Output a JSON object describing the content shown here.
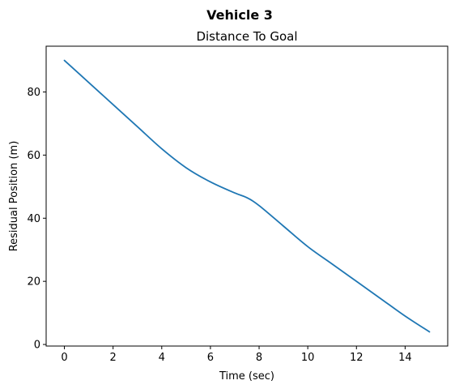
{
  "chart_data": {
    "type": "line",
    "suptitle": "Vehicle 3",
    "title": "Distance To Goal",
    "xlabel": "Time (sec)",
    "ylabel": "Residual Position (m)",
    "xlim": [
      -0.75,
      15.75
    ],
    "ylim": [
      -0.5,
      94.5
    ],
    "xticks": [
      0,
      2,
      4,
      6,
      8,
      10,
      12,
      14
    ],
    "yticks": [
      0,
      20,
      40,
      60,
      80
    ],
    "grid": false,
    "series": [
      {
        "color": "#1f77b4",
        "x": [
          0,
          1,
          2,
          3,
          4,
          5,
          6,
          7,
          7.5,
          8,
          9,
          10,
          11,
          12,
          13,
          14,
          15
        ],
        "y": [
          90,
          83,
          76,
          69,
          62,
          56,
          51.5,
          48,
          46.5,
          44,
          37.5,
          31,
          25.5,
          20,
          14.5,
          9,
          4
        ]
      }
    ]
  }
}
